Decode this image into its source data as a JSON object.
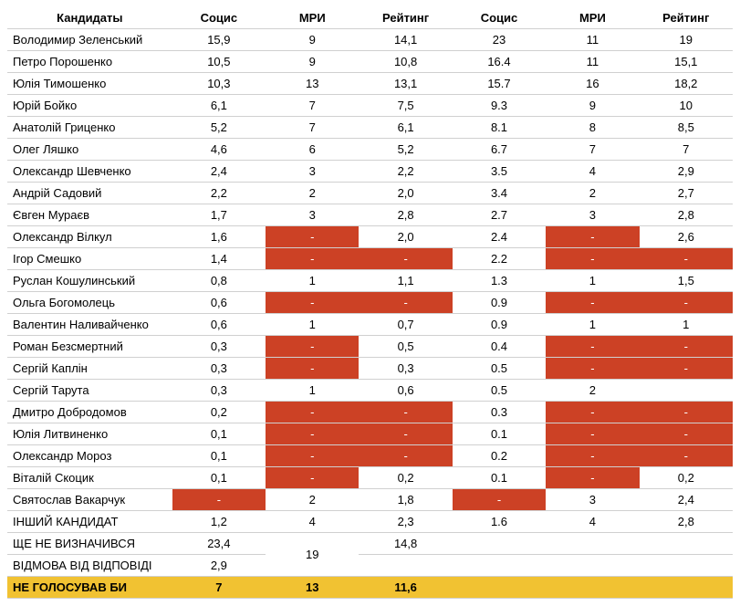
{
  "columns": [
    "Кандидаты",
    "Социс",
    "МРИ",
    "Рейтинг",
    "Социс",
    "МРИ",
    "Рейтинг"
  ],
  "missing_color": "#cc4125",
  "highlight_color": "#f1c232",
  "rows": [
    {
      "name": "Володимир Зеленський",
      "v": [
        "15,9",
        "9",
        "14,1",
        "23",
        "11",
        "19"
      ]
    },
    {
      "name": "Петро Порошенко",
      "v": [
        "10,5",
        "9",
        "10,8",
        "16.4",
        "11",
        "15,1"
      ]
    },
    {
      "name": "Юлія Тимошенко",
      "v": [
        "10,3",
        "13",
        "13,1",
        "15.7",
        "16",
        "18,2"
      ]
    },
    {
      "name": "Юрій Бойко",
      "v": [
        "6,1",
        "7",
        "7,5",
        "9.3",
        "9",
        "10"
      ]
    },
    {
      "name": "Анатолій Гриценко",
      "v": [
        "5,2",
        "7",
        "6,1",
        "8.1",
        "8",
        "8,5"
      ]
    },
    {
      "name": "Олег Ляшко",
      "v": [
        "4,6",
        "6",
        "5,2",
        "6.7",
        "7",
        "7"
      ]
    },
    {
      "name": "Олександр Шевченко",
      "v": [
        "2,4",
        "3",
        "2,2",
        "3.5",
        "4",
        "2,9"
      ]
    },
    {
      "name": "Андрій Садовий",
      "v": [
        "2,2",
        "2",
        "2,0",
        "3.4",
        "2",
        "2,7"
      ]
    },
    {
      "name": "Євген Мураєв",
      "v": [
        "1,7",
        "3",
        "2,8",
        "2.7",
        "3",
        "2,8"
      ]
    },
    {
      "name": "Олександр Вілкул",
      "v": [
        "1,6",
        "-",
        "2,0",
        "2.4",
        "-",
        "2,6"
      ],
      "red": [
        1,
        4
      ]
    },
    {
      "name": "Ігор Смешко",
      "v": [
        "1,4",
        "-",
        "-",
        "2.2",
        "-",
        "-"
      ],
      "red": [
        1,
        2,
        4,
        5
      ]
    },
    {
      "name": "Руслан Кошулинський",
      "v": [
        "0,8",
        "1",
        "1,1",
        "1.3",
        "1",
        "1,5"
      ]
    },
    {
      "name": "Ольга Богомолець",
      "v": [
        "0,6",
        "-",
        "-",
        "0.9",
        "-",
        "-"
      ],
      "red": [
        1,
        2,
        4,
        5
      ]
    },
    {
      "name": "Валентин Наливайченко",
      "v": [
        "0,6",
        "1",
        "0,7",
        "0.9",
        "1",
        "1"
      ]
    },
    {
      "name": "Роман Безсмертний",
      "v": [
        "0,3",
        "-",
        "0,5",
        "0.4",
        "-",
        "-"
      ],
      "red": [
        1,
        4,
        5
      ]
    },
    {
      "name": "Сергій Каплін",
      "v": [
        "0,3",
        "-",
        "0,3",
        "0.5",
        "-",
        "-"
      ],
      "red": [
        1,
        4,
        5
      ]
    },
    {
      "name": "Сергій Тарута",
      "v": [
        "0,3",
        "1",
        "0,6",
        "0.5",
        "2",
        ""
      ]
    },
    {
      "name": "Дмитро Добродомов",
      "v": [
        "0,2",
        "-",
        "-",
        "0.3",
        "-",
        "-"
      ],
      "red": [
        1,
        2,
        4,
        5
      ]
    },
    {
      "name": "Юлія Литвиненко",
      "v": [
        "0,1",
        "-",
        "-",
        "0.1",
        "-",
        "-"
      ],
      "red": [
        1,
        2,
        4,
        5
      ]
    },
    {
      "name": "Олександр Мороз",
      "v": [
        "0,1",
        "-",
        "-",
        "0.2",
        "-",
        "-"
      ],
      "red": [
        1,
        2,
        4,
        5
      ]
    },
    {
      "name": "Віталій Скоцик",
      "v": [
        "0,1",
        "-",
        "0,2",
        "0.1",
        "-",
        "0,2"
      ],
      "red": [
        1,
        4
      ]
    },
    {
      "name": "Святослав Вакарчук",
      "v": [
        "-",
        "2",
        "1,8",
        "-",
        "3",
        "2,4"
      ],
      "red": [
        0,
        3
      ]
    },
    {
      "name": "ІНШИЙ КАНДИДАТ",
      "v": [
        "1,2",
        "4",
        "2,3",
        "1.6",
        "4",
        "2,8"
      ]
    }
  ],
  "merged_group": {
    "merged_value": "19",
    "rows": [
      {
        "name": "ЩЕ НЕ ВИЗНАЧИВСЯ",
        "v": [
          "23,4",
          null,
          "14,8",
          "",
          "",
          ""
        ]
      },
      {
        "name": "ВІДМОВА ВІД ВІДПОВІДІ",
        "v": [
          "2,9",
          null,
          "",
          "",
          "",
          ""
        ]
      }
    ]
  },
  "highlight_row": {
    "name": "НЕ ГОЛОСУВАВ БИ",
    "v": [
      "7",
      "13",
      "11,6",
      "",
      "",
      ""
    ]
  }
}
